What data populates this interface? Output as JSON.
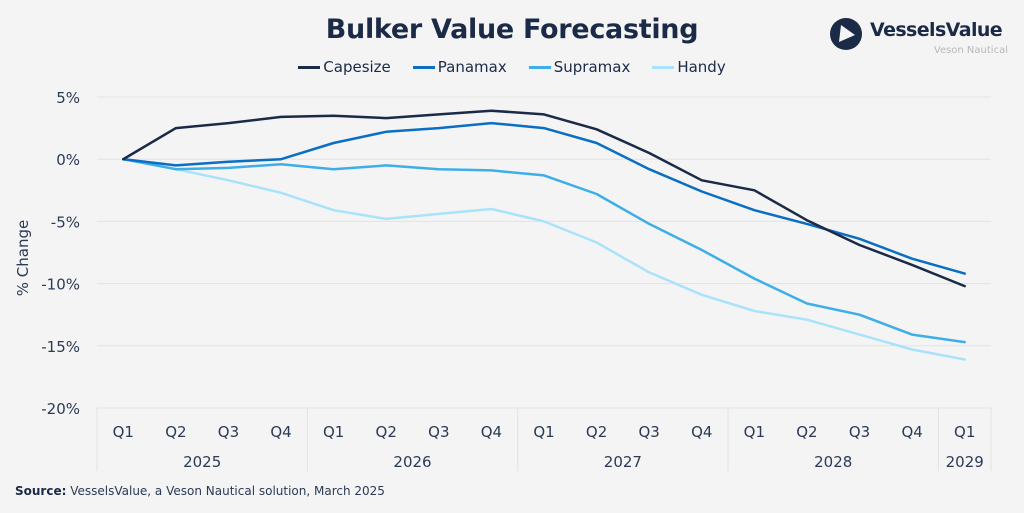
{
  "chart_data": {
    "type": "line",
    "title": "Bulker Value Forecasting",
    "xlabel": "",
    "ylabel": "% Change",
    "ylim": [
      -20,
      5
    ],
    "yticks": [
      5,
      0,
      -5,
      -10,
      -15,
      -20
    ],
    "ytick_labels": [
      "5%",
      "0%",
      "-5%",
      "-10%",
      "-15%",
      "-20%"
    ],
    "grid": true,
    "legend_position": "top-center",
    "x": [
      "Q1 2025",
      "Q2 2025",
      "Q3 2025",
      "Q4 2025",
      "Q1 2026",
      "Q2 2026",
      "Q3 2026",
      "Q4 2026",
      "Q1 2027",
      "Q2 2027",
      "Q3 2027",
      "Q4 2027",
      "Q1 2028",
      "Q2 2028",
      "Q3 2028",
      "Q4 2028",
      "Q1 2029"
    ],
    "quarter_labels": [
      "Q1",
      "Q2",
      "Q3",
      "Q4",
      "Q1",
      "Q2",
      "Q3",
      "Q4",
      "Q1",
      "Q2",
      "Q3",
      "Q4",
      "Q1",
      "Q2",
      "Q3",
      "Q4",
      "Q1"
    ],
    "year_groups": [
      {
        "label": "2025",
        "count": 4
      },
      {
        "label": "2026",
        "count": 4
      },
      {
        "label": "2027",
        "count": 4
      },
      {
        "label": "2028",
        "count": 4
      },
      {
        "label": "2029",
        "count": 1
      }
    ],
    "series": [
      {
        "name": "Capesize",
        "color": "#1b2a47",
        "values": [
          0,
          2.5,
          2.9,
          3.4,
          3.5,
          3.3,
          3.6,
          3.9,
          3.6,
          2.4,
          0.5,
          -1.7,
          -2.5,
          -4.9,
          -6.9,
          -8.5,
          -10.2
        ]
      },
      {
        "name": "Panamax",
        "color": "#0a6fc2",
        "values": [
          0,
          -0.5,
          -0.2,
          0.0,
          1.3,
          2.2,
          2.5,
          2.9,
          2.5,
          1.3,
          -0.8,
          -2.6,
          -4.1,
          -5.2,
          -6.4,
          -8.0,
          -9.2
        ]
      },
      {
        "name": "Supramax",
        "color": "#3eaee8",
        "values": [
          0,
          -0.8,
          -0.7,
          -0.4,
          -0.8,
          -0.5,
          -0.8,
          -0.9,
          -1.3,
          -2.8,
          -5.2,
          -7.3,
          -9.6,
          -11.6,
          -12.5,
          -14.1,
          -14.7
        ]
      },
      {
        "name": "Handy",
        "color": "#a9e3fb",
        "values": [
          0,
          -0.8,
          -1.7,
          -2.7,
          -4.1,
          -4.8,
          -4.4,
          -4.0,
          -5.0,
          -6.7,
          -9.1,
          -10.9,
          -12.2,
          -12.9,
          -14.1,
          -15.3,
          -16.1
        ]
      }
    ]
  },
  "logo": {
    "name": "VesselsValue",
    "subtitle": "Veson Nautical"
  },
  "source": {
    "label": "Source:",
    "text": " VesselsValue, a Veson Nautical solution, March 2025"
  }
}
